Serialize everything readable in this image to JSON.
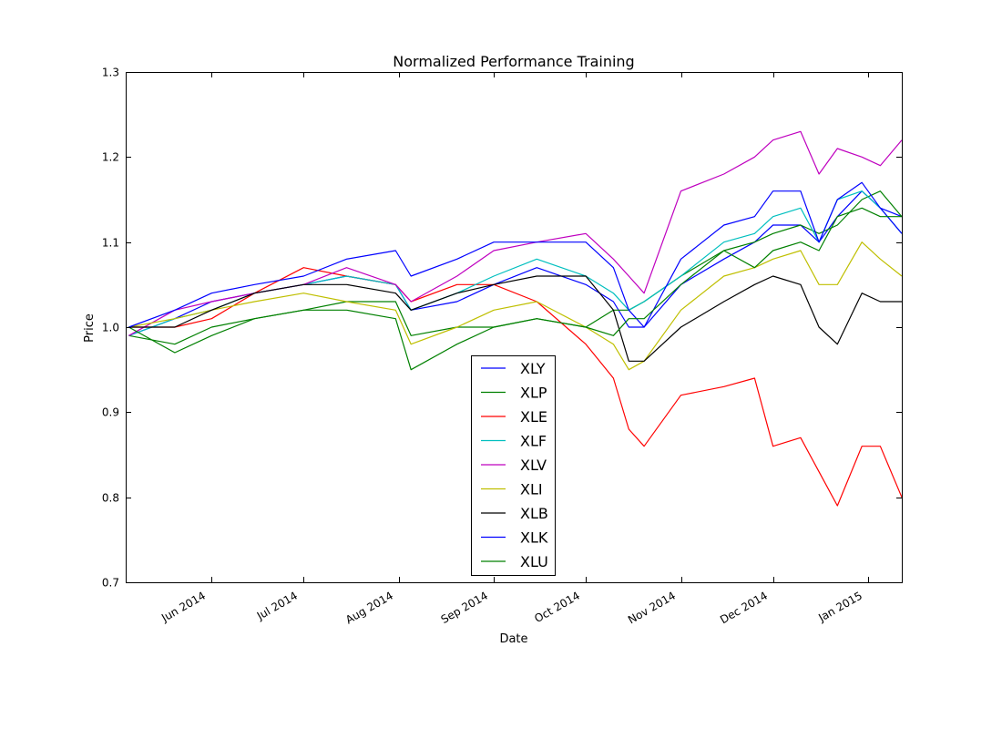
{
  "chart_data": {
    "type": "line",
    "title": "Normalized Performance Training",
    "xlabel": "Date",
    "ylabel": "Price",
    "xlim": [
      "2014-05-04",
      "2015-01-12"
    ],
    "ylim": [
      0.7,
      1.3
    ],
    "yticks": [
      "0.7",
      "0.8",
      "0.9",
      "1.0",
      "1.1",
      "1.2",
      "1.3"
    ],
    "xticks": [
      {
        "date": "2014-06-01",
        "label": "Jun 2014"
      },
      {
        "date": "2014-07-01",
        "label": "Jul 2014"
      },
      {
        "date": "2014-08-01",
        "label": "Aug 2014"
      },
      {
        "date": "2014-09-01",
        "label": "Sep 2014"
      },
      {
        "date": "2014-10-01",
        "label": "Oct 2014"
      },
      {
        "date": "2014-11-01",
        "label": "Nov 2014"
      },
      {
        "date": "2014-12-01",
        "label": "Dec 2014"
      },
      {
        "date": "2015-01-01",
        "label": "Jan 2015"
      }
    ],
    "grid": false,
    "legend_position": "lower center",
    "x": [
      "2014-05-05",
      "2014-05-20",
      "2014-06-01",
      "2014-06-15",
      "2014-07-01",
      "2014-07-15",
      "2014-07-31",
      "2014-08-05",
      "2014-08-20",
      "2014-09-01",
      "2014-09-15",
      "2014-10-01",
      "2014-10-10",
      "2014-10-15",
      "2014-10-20",
      "2014-11-01",
      "2014-11-15",
      "2014-11-25",
      "2014-12-01",
      "2014-12-10",
      "2014-12-16",
      "2014-12-22",
      "2014-12-30",
      "2015-01-05",
      "2015-01-12"
    ],
    "series": [
      {
        "name": "XLY",
        "color": "#0000ff",
        "values": [
          0.99,
          1.01,
          1.03,
          1.04,
          1.05,
          1.06,
          1.05,
          1.02,
          1.03,
          1.05,
          1.07,
          1.05,
          1.03,
          1.0,
          1.0,
          1.05,
          1.08,
          1.1,
          1.12,
          1.12,
          1.1,
          1.13,
          1.16,
          1.14,
          1.13
        ]
      },
      {
        "name": "XLP",
        "color": "#008000",
        "values": [
          0.99,
          0.98,
          1.0,
          1.01,
          1.02,
          1.03,
          1.03,
          0.99,
          1.0,
          1.0,
          1.01,
          1.0,
          1.02,
          1.02,
          1.03,
          1.06,
          1.09,
          1.1,
          1.11,
          1.12,
          1.11,
          1.12,
          1.15,
          1.16,
          1.13
        ]
      },
      {
        "name": "XLE",
        "color": "#ff0000",
        "values": [
          1.0,
          1.0,
          1.01,
          1.04,
          1.07,
          1.06,
          1.05,
          1.03,
          1.05,
          1.05,
          1.03,
          0.98,
          0.94,
          0.88,
          0.86,
          0.92,
          0.93,
          0.94,
          0.86,
          0.87,
          0.83,
          0.79,
          0.86,
          0.86,
          0.8
        ]
      },
      {
        "name": "XLF",
        "color": "#00bfbf",
        "values": [
          0.99,
          1.01,
          1.02,
          1.04,
          1.05,
          1.06,
          1.05,
          1.02,
          1.04,
          1.06,
          1.08,
          1.06,
          1.04,
          1.02,
          1.03,
          1.06,
          1.1,
          1.11,
          1.13,
          1.14,
          1.1,
          1.15,
          1.16,
          1.14,
          1.11
        ]
      },
      {
        "name": "XLV",
        "color": "#bf00bf",
        "values": [
          0.99,
          1.02,
          1.03,
          1.04,
          1.05,
          1.07,
          1.05,
          1.03,
          1.06,
          1.09,
          1.1,
          1.11,
          1.08,
          1.06,
          1.04,
          1.16,
          1.18,
          1.2,
          1.22,
          1.23,
          1.18,
          1.21,
          1.2,
          1.19,
          1.22
        ]
      },
      {
        "name": "XLI",
        "color": "#bfbf00",
        "values": [
          1.0,
          1.01,
          1.02,
          1.03,
          1.04,
          1.03,
          1.02,
          0.98,
          1.0,
          1.02,
          1.03,
          1.0,
          0.98,
          0.95,
          0.96,
          1.02,
          1.06,
          1.07,
          1.08,
          1.09,
          1.05,
          1.05,
          1.1,
          1.08,
          1.06
        ]
      },
      {
        "name": "XLB",
        "color": "#000000",
        "values": [
          1.0,
          1.0,
          1.02,
          1.04,
          1.05,
          1.05,
          1.04,
          1.02,
          1.04,
          1.05,
          1.06,
          1.06,
          1.02,
          0.96,
          0.96,
          1.0,
          1.03,
          1.05,
          1.06,
          1.05,
          1.0,
          0.98,
          1.04,
          1.03,
          1.03
        ]
      },
      {
        "name": "XLK",
        "color": "#0000ff",
        "values": [
          1.0,
          1.02,
          1.04,
          1.05,
          1.06,
          1.08,
          1.09,
          1.06,
          1.08,
          1.1,
          1.1,
          1.1,
          1.07,
          1.02,
          1.0,
          1.08,
          1.12,
          1.13,
          1.16,
          1.16,
          1.1,
          1.15,
          1.17,
          1.14,
          1.11
        ]
      },
      {
        "name": "XLU",
        "color": "#008000",
        "values": [
          1.0,
          0.97,
          0.99,
          1.01,
          1.02,
          1.02,
          1.01,
          0.95,
          0.98,
          1.0,
          1.01,
          1.0,
          0.99,
          1.01,
          1.01,
          1.05,
          1.09,
          1.07,
          1.09,
          1.1,
          1.09,
          1.13,
          1.14,
          1.13,
          1.13
        ]
      }
    ]
  }
}
